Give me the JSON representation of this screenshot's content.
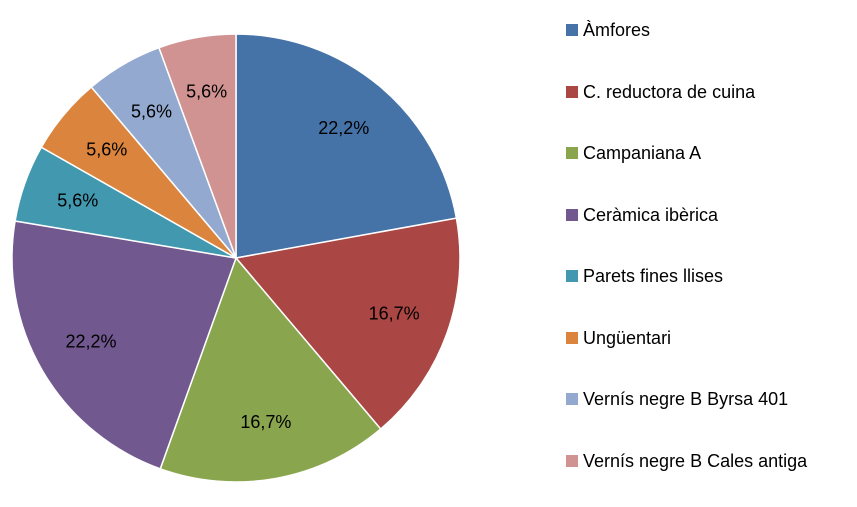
{
  "chart_data": {
    "type": "pie",
    "categories": [
      "Àmfores",
      "C. reductora de cuina",
      "Campaniana A",
      "Ceràmica ibèrica",
      "Parets fines llises",
      "Ungüentari",
      "Vernís negre B Byrsa 401",
      "Vernís negre B Cales antiga"
    ],
    "values": [
      22.2,
      16.7,
      16.7,
      22.2,
      5.6,
      5.6,
      5.6,
      5.6
    ],
    "value_labels": [
      "22,2%",
      "16,7%",
      "16,7%",
      "22,2%",
      "5,6%",
      "5,6%",
      "5,6%",
      "5,6%"
    ],
    "colors": [
      "#4572a7",
      "#aa4643",
      "#89a54e",
      "#71588f",
      "#4198af",
      "#db843d",
      "#93a9cf",
      "#d19392"
    ],
    "legend": "right"
  }
}
